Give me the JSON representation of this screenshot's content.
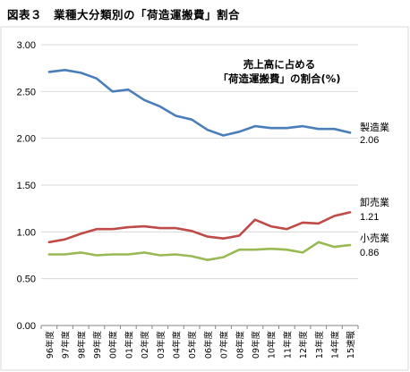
{
  "chart_data": {
    "type": "line",
    "title": "図表３　業種大分類別の「荷造運搬費」割合",
    "annotation": [
      "売上高に占める",
      "「荷造運搬費」の割合(%)"
    ],
    "categories": [
      "96年度",
      "97年度",
      "98年度",
      "99年度",
      "00年度",
      "01年度",
      "02年度",
      "03年度",
      "04年度",
      "05年度",
      "06年度",
      "07年度",
      "08年度",
      "09年度",
      "10年度",
      "11年度",
      "12年度",
      "13年度",
      "14年度",
      "15速報"
    ],
    "ylim": [
      0,
      3
    ],
    "yticks": [
      "0.00",
      "0.50",
      "1.00",
      "1.50",
      "2.00",
      "2.50",
      "3.00"
    ],
    "grid": true,
    "series": [
      {
        "name": "製造業",
        "end_label": "2.06",
        "color": "#4a7ebb",
        "values": [
          2.71,
          2.73,
          2.7,
          2.64,
          2.5,
          2.52,
          2.41,
          2.34,
          2.24,
          2.2,
          2.09,
          2.03,
          2.07,
          2.13,
          2.11,
          2.11,
          2.13,
          2.1,
          2.1,
          2.06
        ]
      },
      {
        "name": "卸売業",
        "end_label": "1.21",
        "color": "#be4b48",
        "values": [
          0.89,
          0.92,
          0.98,
          1.03,
          1.03,
          1.05,
          1.06,
          1.04,
          1.04,
          1.01,
          0.95,
          0.93,
          0.96,
          1.13,
          1.06,
          1.03,
          1.1,
          1.09,
          1.17,
          1.21
        ]
      },
      {
        "name": "小売業",
        "end_label": "0.86",
        "color": "#98b954",
        "values": [
          0.76,
          0.76,
          0.78,
          0.75,
          0.76,
          0.76,
          0.78,
          0.75,
          0.76,
          0.74,
          0.7,
          0.73,
          0.81,
          0.81,
          0.82,
          0.81,
          0.78,
          0.89,
          0.84,
          0.86
        ]
      }
    ]
  }
}
